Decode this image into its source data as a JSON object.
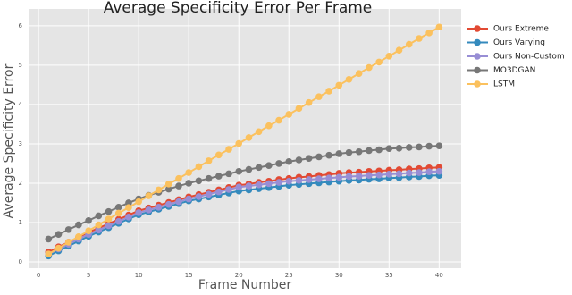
{
  "chart_data": {
    "type": "line",
    "title": "Average Specificity Error Per Frame",
    "x_label": "Frame Number",
    "y_label": "Average Specificity Error",
    "x": [
      1,
      2,
      3,
      4,
      5,
      6,
      7,
      8,
      9,
      10,
      11,
      12,
      13,
      14,
      15,
      16,
      17,
      18,
      19,
      20,
      21,
      22,
      23,
      24,
      25,
      26,
      27,
      28,
      29,
      30,
      31,
      32,
      33,
      34,
      35,
      36,
      37,
      38,
      39,
      40
    ],
    "series": [
      {
        "name": "Ours Extreme",
        "color": "#e24a33",
        "values": [
          0.25,
          0.38,
          0.5,
          0.63,
          0.75,
          0.86,
          0.97,
          1.08,
          1.19,
          1.3,
          1.37,
          1.44,
          1.51,
          1.58,
          1.65,
          1.71,
          1.77,
          1.83,
          1.89,
          1.95,
          1.98,
          2.02,
          2.05,
          2.09,
          2.12,
          2.15,
          2.17,
          2.2,
          2.22,
          2.25,
          2.27,
          2.28,
          2.3,
          2.31,
          2.33,
          2.34,
          2.36,
          2.37,
          2.39,
          2.4
        ]
      },
      {
        "name": "Ours Varying",
        "color": "#348abd",
        "values": [
          0.15,
          0.28,
          0.4,
          0.53,
          0.65,
          0.76,
          0.87,
          0.98,
          1.09,
          1.2,
          1.27,
          1.34,
          1.41,
          1.48,
          1.55,
          1.6,
          1.65,
          1.7,
          1.75,
          1.8,
          1.83,
          1.86,
          1.89,
          1.92,
          1.95,
          1.97,
          1.99,
          2.01,
          2.03,
          2.05,
          2.07,
          2.08,
          2.1,
          2.11,
          2.13,
          2.14,
          2.16,
          2.17,
          2.19,
          2.2
        ]
      },
      {
        "name": "Ours Non-Custom",
        "color": "#988ed5",
        "values": [
          0.2,
          0.33,
          0.45,
          0.58,
          0.7,
          0.81,
          0.92,
          1.03,
          1.14,
          1.25,
          1.32,
          1.39,
          1.46,
          1.53,
          1.6,
          1.66,
          1.72,
          1.78,
          1.84,
          1.9,
          1.93,
          1.96,
          1.99,
          2.02,
          2.05,
          2.07,
          2.09,
          2.11,
          2.13,
          2.15,
          2.17,
          2.18,
          2.2,
          2.21,
          2.23,
          2.24,
          2.26,
          2.27,
          2.29,
          2.3
        ]
      },
      {
        "name": "MO3DGAN",
        "color": "#777777",
        "values": [
          0.58,
          0.7,
          0.82,
          0.94,
          1.05,
          1.17,
          1.28,
          1.39,
          1.5,
          1.6,
          1.69,
          1.77,
          1.85,
          1.93,
          2.0,
          2.06,
          2.12,
          2.18,
          2.24,
          2.3,
          2.35,
          2.4,
          2.45,
          2.5,
          2.55,
          2.59,
          2.63,
          2.67,
          2.71,
          2.75,
          2.78,
          2.8,
          2.83,
          2.85,
          2.88,
          2.89,
          2.91,
          2.92,
          2.94,
          2.95
        ]
      },
      {
        "name": "LSTM",
        "color": "#fbc15e",
        "values": [
          0.2,
          0.35,
          0.5,
          0.64,
          0.79,
          0.94,
          1.09,
          1.24,
          1.38,
          1.53,
          1.68,
          1.83,
          1.98,
          2.12,
          2.27,
          2.42,
          2.57,
          2.72,
          2.86,
          3.01,
          3.16,
          3.31,
          3.46,
          3.6,
          3.75,
          3.9,
          4.05,
          4.2,
          4.34,
          4.49,
          4.64,
          4.79,
          4.94,
          5.08,
          5.23,
          5.38,
          5.53,
          5.68,
          5.82,
          5.97
        ]
      }
    ],
    "xlim": [
      -0.9,
      42.2
    ],
    "ylim": [
      -0.16,
      6.43
    ],
    "xticks": [
      0,
      5,
      10,
      15,
      20,
      25,
      30,
      35,
      40
    ],
    "yticks": [
      0,
      1,
      2,
      3,
      4,
      5,
      6
    ],
    "grid": true,
    "legend": "outside-right"
  }
}
